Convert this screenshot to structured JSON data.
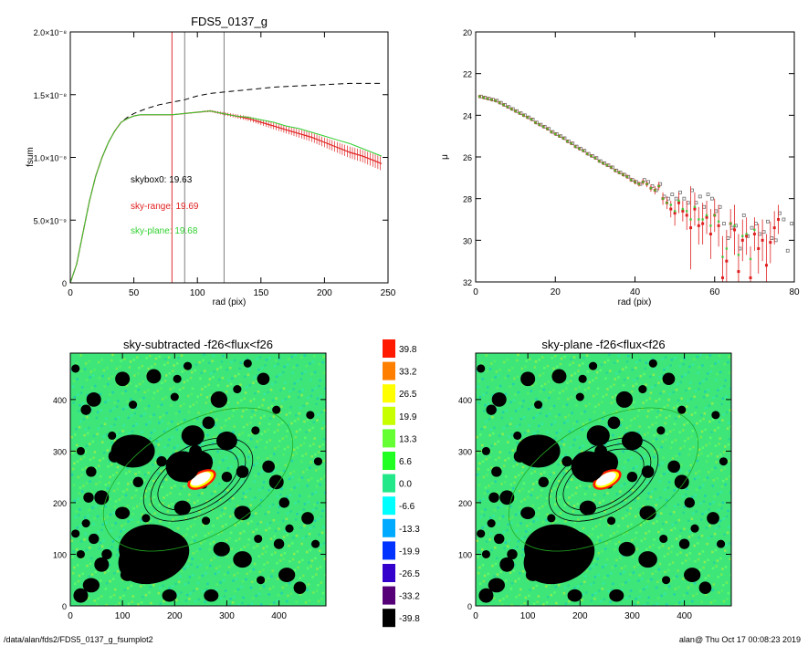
{
  "footer": {
    "path": "/data/alan/fds2/FDS5_0137_g_fsumplot2",
    "stamp": "alan@  Thu Oct 17 00:08:23 2019"
  },
  "chart_data": [
    {
      "type": "line",
      "title": "FDS5_0137_g",
      "xlabel": "rad (pix)",
      "ylabel": "fsum",
      "xlim": [
        0,
        250
      ],
      "ylim": [
        0,
        2e-08
      ],
      "xticks": [
        "0",
        "50",
        "100",
        "150",
        "200",
        "250"
      ],
      "yticks": [
        "0",
        "5.0×10⁻⁹",
        "1.0×10⁻⁸",
        "1.5×10⁻⁸",
        "2.0×10⁻⁸"
      ],
      "vlines": [
        {
          "x": 80,
          "color": "#e03030"
        },
        {
          "x": 90,
          "color": "#808080"
        },
        {
          "x": 121,
          "color": "#808080"
        }
      ],
      "annotations": [
        {
          "text": "skybox0: 19.63",
          "color": "#000000"
        },
        {
          "text": "sky-range: 19.69",
          "color": "#e02020"
        },
        {
          "text": "sky-plane: 19.68",
          "color": "#30d030"
        }
      ],
      "series": [
        {
          "style": "dashed",
          "color": "#000000",
          "x": [
            0,
            5,
            10,
            15,
            20,
            25,
            30,
            35,
            40,
            45,
            50,
            55,
            60,
            70,
            80,
            90,
            100,
            110,
            120,
            140,
            160,
            180,
            200,
            220,
            240,
            245
          ],
          "y": [
            0,
            1.5e-09,
            4e-09,
            6.5e-09,
            8.5e-09,
            1e-08,
            1.12e-08,
            1.21e-08,
            1.28e-08,
            1.32e-08,
            1.35e-08,
            1.37e-08,
            1.39e-08,
            1.42e-08,
            1.44e-08,
            1.46e-08,
            1.49e-08,
            1.51e-08,
            1.52e-08,
            1.54e-08,
            1.56e-08,
            1.57e-08,
            1.58e-08,
            1.59e-08,
            1.59e-08,
            1.59e-08
          ]
        },
        {
          "style": "errorbar",
          "color": "#e02020",
          "x": [
            0,
            5,
            10,
            15,
            20,
            25,
            30,
            35,
            40,
            45,
            50,
            55,
            60,
            70,
            80,
            90,
            100,
            110,
            120,
            130,
            140,
            150,
            160,
            170,
            180,
            190,
            200,
            210,
            220,
            230,
            240,
            245
          ],
          "y": [
            0,
            1.5e-09,
            4e-09,
            6.5e-09,
            8.5e-09,
            1e-08,
            1.12e-08,
            1.21e-08,
            1.28e-08,
            1.31e-08,
            1.33e-08,
            1.34e-08,
            1.34e-08,
            1.34e-08,
            1.34e-08,
            1.35e-08,
            1.36e-08,
            1.37e-08,
            1.35e-08,
            1.33e-08,
            1.31e-08,
            1.28e-08,
            1.25e-08,
            1.22e-08,
            1.19e-08,
            1.16e-08,
            1.12e-08,
            1.08e-08,
            1.04e-08,
            1.01e-08,
            9.7e-09,
            9.5e-09
          ]
        },
        {
          "style": "solid",
          "color": "#30d030",
          "x": [
            0,
            5,
            10,
            15,
            20,
            25,
            30,
            35,
            40,
            45,
            50,
            55,
            60,
            70,
            80,
            90,
            100,
            110,
            120,
            130,
            140,
            150,
            160,
            170,
            180,
            190,
            200,
            210,
            220,
            230,
            240,
            245
          ],
          "y": [
            0,
            1.5e-09,
            4e-09,
            6.5e-09,
            8.5e-09,
            1e-08,
            1.12e-08,
            1.21e-08,
            1.28e-08,
            1.31e-08,
            1.33e-08,
            1.34e-08,
            1.34e-08,
            1.34e-08,
            1.34e-08,
            1.35e-08,
            1.36e-08,
            1.37e-08,
            1.35e-08,
            1.33e-08,
            1.32e-08,
            1.3e-08,
            1.28e-08,
            1.25e-08,
            1.23e-08,
            1.2e-08,
            1.17e-08,
            1.14e-08,
            1.11e-08,
            1.07e-08,
            1.03e-08,
            1.01e-08
          ]
        }
      ]
    },
    {
      "type": "scatter",
      "title": "",
      "xlabel": "rad (pix)",
      "ylabel": "μ",
      "xlim": [
        0,
        80
      ],
      "ylim": [
        32,
        20
      ],
      "xticks": [
        "0",
        "20",
        "40",
        "60",
        "80"
      ],
      "yticks": [
        "20",
        "22",
        "24",
        "26",
        "28",
        "30",
        "32"
      ],
      "series": [
        {
          "color": "#707070",
          "x": [
            1,
            2,
            3,
            4,
            5,
            6,
            7,
            8,
            9,
            10,
            11,
            12,
            13,
            14,
            15,
            16,
            17,
            18,
            19,
            20,
            21,
            22,
            23,
            24,
            25,
            26,
            27,
            28,
            29,
            30,
            31,
            32,
            33,
            34,
            35,
            36,
            37,
            38,
            39,
            40,
            41,
            42,
            43,
            44,
            45,
            46,
            47,
            48,
            49,
            50,
            51,
            52,
            53,
            54,
            55,
            56,
            57,
            58,
            59,
            60,
            61,
            62,
            63,
            64,
            65,
            66,
            67,
            68,
            69,
            70,
            71,
            72,
            73,
            74,
            75,
            76,
            77,
            78,
            79
          ],
          "y": [
            23.1,
            23.15,
            23.2,
            23.25,
            23.3,
            23.4,
            23.5,
            23.6,
            23.7,
            23.8,
            23.9,
            24.0,
            24.1,
            24.2,
            24.35,
            24.45,
            24.55,
            24.65,
            24.8,
            24.9,
            25.0,
            25.1,
            25.25,
            25.35,
            25.5,
            25.6,
            25.7,
            25.85,
            25.95,
            26.05,
            26.2,
            26.3,
            26.4,
            26.5,
            26.65,
            26.75,
            26.85,
            26.95,
            27.1,
            27.2,
            27.3,
            27.1,
            27.2,
            27.4,
            27.6,
            27.3,
            27.9,
            28.0,
            27.8,
            28.0,
            27.7,
            28.0,
            28.2,
            27.6,
            28.2,
            27.9,
            28.4,
            27.8,
            28.0,
            28.6,
            28.4,
            29.2,
            29.9,
            29.4,
            29.3,
            30.4,
            28.8,
            29.8,
            29.4,
            29.2,
            29.7,
            29.6,
            29.1,
            29.9,
            30.0,
            28.7,
            29.0,
            30.5,
            29.2
          ]
        },
        {
          "color": "#e02020",
          "x": [
            1,
            2,
            3,
            4,
            5,
            6,
            7,
            8,
            9,
            10,
            11,
            12,
            13,
            14,
            15,
            16,
            17,
            18,
            19,
            20,
            21,
            22,
            23,
            24,
            25,
            26,
            27,
            28,
            29,
            30,
            31,
            32,
            33,
            34,
            35,
            36,
            37,
            38,
            39,
            40,
            41,
            42,
            43,
            44,
            45,
            46,
            47,
            48,
            49,
            50,
            51,
            52,
            53,
            54,
            55,
            56,
            57,
            58,
            59,
            60,
            61,
            62,
            63,
            64,
            65,
            66,
            67,
            68,
            69,
            70,
            71,
            72,
            73,
            74,
            75,
            76
          ],
          "y": [
            23.1,
            23.15,
            23.2,
            23.25,
            23.3,
            23.4,
            23.5,
            23.6,
            23.7,
            23.8,
            23.9,
            24.0,
            24.1,
            24.2,
            24.35,
            24.45,
            24.55,
            24.65,
            24.8,
            24.9,
            25.0,
            25.1,
            25.25,
            25.35,
            25.5,
            25.6,
            25.7,
            25.85,
            25.95,
            26.05,
            26.2,
            26.3,
            26.4,
            26.5,
            26.65,
            26.75,
            26.85,
            26.95,
            27.1,
            27.2,
            27.3,
            27.2,
            27.3,
            27.5,
            27.6,
            27.4,
            28.0,
            28.2,
            28.5,
            28.7,
            28.2,
            28.6,
            28.8,
            29.4,
            28.5,
            29.3,
            29.2,
            28.9,
            29.7,
            28.8,
            29.3,
            31.8,
            31.0,
            29.2,
            29.5,
            31.5,
            30.0,
            29.8,
            31.8,
            29.7,
            30.4,
            30.0,
            31.2,
            30.1,
            29.4,
            29.0
          ],
          "err": [
            0.02,
            0.02,
            0.02,
            0.02,
            0.02,
            0.02,
            0.02,
            0.02,
            0.02,
            0.02,
            0.02,
            0.02,
            0.02,
            0.02,
            0.02,
            0.02,
            0.02,
            0.02,
            0.03,
            0.03,
            0.03,
            0.03,
            0.03,
            0.03,
            0.04,
            0.04,
            0.04,
            0.05,
            0.05,
            0.05,
            0.06,
            0.06,
            0.07,
            0.07,
            0.08,
            0.08,
            0.09,
            0.1,
            0.1,
            0.12,
            0.12,
            0.14,
            0.15,
            0.17,
            0.2,
            0.2,
            0.3,
            0.3,
            0.4,
            0.6,
            0.5,
            0.5,
            0.7,
            2.0,
            0.8,
            0.9,
            1.0,
            0.8,
            1.2,
            0.8,
            1.0,
            2.0,
            1.5,
            0.7,
            1.2,
            1.8,
            1.0,
            0.9,
            1.5,
            0.8,
            1.2,
            1.0,
            1.5,
            1.0,
            0.8,
            0.7
          ]
        },
        {
          "color": "#30d030",
          "x": [
            1,
            2,
            3,
            4,
            5,
            6,
            7,
            8,
            9,
            10,
            11,
            12,
            13,
            14,
            15,
            16,
            17,
            18,
            19,
            20,
            21,
            22,
            23,
            24,
            25,
            26,
            27,
            28,
            29,
            30,
            31,
            32,
            33,
            34,
            35,
            36,
            37,
            38,
            39,
            40,
            41,
            42,
            43,
            44,
            45,
            46,
            47,
            48,
            49,
            50,
            51,
            52,
            53,
            54,
            55,
            56,
            57,
            58,
            59,
            60,
            61,
            62,
            63,
            64,
            65,
            66,
            67,
            68,
            69,
            70
          ],
          "y": [
            23.1,
            23.15,
            23.2,
            23.25,
            23.3,
            23.4,
            23.5,
            23.6,
            23.7,
            23.8,
            23.9,
            24.0,
            24.1,
            24.2,
            24.35,
            24.45,
            24.55,
            24.65,
            24.8,
            24.9,
            25.0,
            25.1,
            25.25,
            25.35,
            25.5,
            25.6,
            25.7,
            25.85,
            25.95,
            26.05,
            26.2,
            26.3,
            26.4,
            26.5,
            26.65,
            26.75,
            26.85,
            26.95,
            27.1,
            27.2,
            27.3,
            27.2,
            27.3,
            27.5,
            27.6,
            27.4,
            28.0,
            28.2,
            28.3,
            28.6,
            28.1,
            28.5,
            28.6,
            29.0,
            28.4,
            29.0,
            29.0,
            28.8,
            29.3,
            28.8,
            29.1,
            30.8,
            30.4,
            29.2,
            29.3,
            30.7,
            29.8,
            29.7,
            30.9,
            29.5
          ]
        }
      ]
    },
    {
      "type": "heatmap",
      "title": "sky-subtracted -f26<flux<f26",
      "xlim": [
        0,
        490
      ],
      "ylim": [
        0,
        490
      ],
      "xticks": [
        "0",
        "100",
        "200",
        "300",
        "400"
      ],
      "yticks": [
        "0",
        "100",
        "200",
        "300",
        "400"
      ],
      "galaxy_center": [
        245,
        245
      ],
      "ellipses": [
        {
          "a": 115,
          "b": 65,
          "angle": -30,
          "color": "#000000"
        },
        {
          "a": 100,
          "b": 55,
          "angle": -30,
          "color": "#000000"
        },
        {
          "a": 85,
          "b": 47,
          "angle": -30,
          "color": "#000000"
        }
      ]
    },
    {
      "type": "heatmap",
      "title": "sky-plane -f26<flux<f26",
      "xlim": [
        0,
        490
      ],
      "ylim": [
        0,
        490
      ],
      "xticks": [
        "0",
        "100",
        "200",
        "300",
        "400"
      ],
      "yticks": [
        "0",
        "100",
        "200",
        "300",
        "400"
      ]
    }
  ],
  "colorbar": {
    "labels": [
      "39.8",
      "33.2",
      "26.5",
      "19.9",
      "13.3",
      "6.6",
      "0.0",
      "-6.6",
      "-13.3",
      "-19.9",
      "-26.5",
      "-33.2",
      "-39.8"
    ],
    "colors": [
      "#ff1a00",
      "#ff8000",
      "#ffff00",
      "#c8ff00",
      "#66ff33",
      "#22ff22",
      "#22e88a",
      "#00ffff",
      "#00aaff",
      "#0033ff",
      "#3300cc",
      "#550077",
      "#000000"
    ]
  },
  "heatmap_masks": [
    [
      155,
      110,
      62,
      48
    ],
    [
      120,
      300,
      42,
      32
    ],
    [
      235,
      330,
      22,
      20
    ],
    [
      85,
      290,
      12,
      12
    ],
    [
      60,
      210,
      14,
      14
    ],
    [
      35,
      210,
      10,
      10
    ],
    [
      40,
      260,
      10,
      10
    ],
    [
      30,
      380,
      10,
      10
    ],
    [
      45,
      400,
      14,
      14
    ],
    [
      100,
      440,
      14,
      14
    ],
    [
      160,
      445,
      14,
      14
    ],
    [
      285,
      400,
      16,
      16
    ],
    [
      370,
      440,
      12,
      12
    ],
    [
      300,
      320,
      20,
      18
    ],
    [
      330,
      260,
      12,
      12
    ],
    [
      330,
      180,
      16,
      14
    ],
    [
      380,
      270,
      12,
      12
    ],
    [
      410,
      200,
      10,
      10
    ],
    [
      455,
      170,
      12,
      12
    ],
    [
      330,
      90,
      18,
      16
    ],
    [
      290,
      110,
      16,
      14
    ],
    [
      415,
      60,
      16,
      14
    ],
    [
      440,
      35,
      12,
      12
    ],
    [
      270,
      20,
      14,
      12
    ],
    [
      190,
      20,
      14,
      12
    ],
    [
      40,
      40,
      16,
      14
    ],
    [
      20,
      20,
      14,
      14
    ],
    [
      60,
      80,
      14,
      14
    ],
    [
      10,
      140,
      8,
      8
    ],
    [
      100,
      180,
      14,
      12
    ],
    [
      215,
      190,
      16,
      14
    ],
    [
      240,
      300,
      12,
      12
    ],
    [
      130,
      240,
      10,
      10
    ],
    [
      300,
      250,
      10,
      10
    ],
    [
      470,
      120,
      8,
      8
    ],
    [
      400,
      120,
      10,
      10
    ],
    [
      355,
      340,
      8,
      8
    ],
    [
      265,
      355,
      12,
      12
    ],
    [
      475,
      280,
      8,
      8
    ],
    [
      460,
      370,
      8,
      8
    ],
    [
      395,
      380,
      8,
      8
    ],
    [
      320,
      420,
      8,
      8
    ],
    [
      200,
      405,
      8,
      8
    ],
    [
      120,
      390,
      8,
      8
    ],
    [
      80,
      330,
      8,
      8
    ],
    [
      20,
      300,
      8,
      8
    ],
    [
      10,
      460,
      8,
      8
    ],
    [
      225,
      465,
      8,
      8
    ],
    [
      340,
      470,
      8,
      8
    ],
    [
      395,
      240,
      14,
      14
    ],
    [
      255,
      235,
      8,
      8
    ],
    [
      175,
      280,
      10,
      10
    ],
    [
      145,
      170,
      8,
      8
    ],
    [
      45,
      130,
      10,
      10
    ],
    [
      20,
      100,
      8,
      8
    ],
    [
      360,
      130,
      8,
      8
    ],
    [
      420,
      150,
      8,
      8
    ],
    [
      260,
      165,
      8,
      8
    ],
    [
      365,
      50,
      8,
      8
    ],
    [
      30,
      160,
      8,
      8
    ],
    [
      205,
      440,
      8,
      8
    ],
    [
      70,
      100,
      10,
      10
    ],
    [
      110,
      60,
      14,
      12
    ]
  ]
}
